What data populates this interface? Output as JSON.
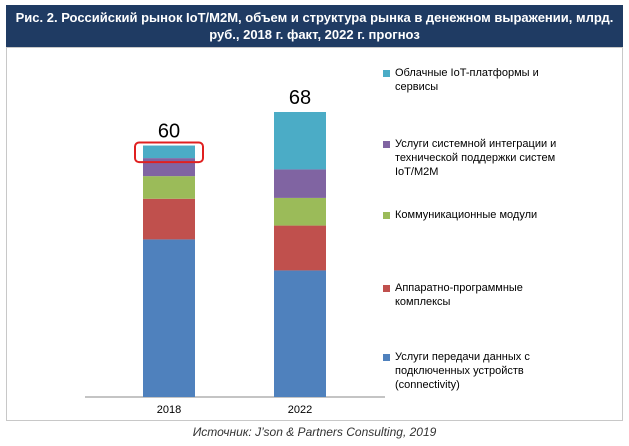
{
  "chart_data": {
    "type": "stacked_bar",
    "title": "Рис. 2. Российский рынок IoT/M2M, объем и структура рынка в денежном выражении, млрд. руб., 2018 г. факт, 2022 г. прогноз",
    "categories": [
      "2018",
      "2022"
    ],
    "totals": [
      60,
      68
    ],
    "series": [
      {
        "name": "Услуги передачи данных с подключенных устройств (connectivity)",
        "color": "#4f81bd",
        "values": [
          37.6,
          30.2
        ]
      },
      {
        "name": "Аппаратно-программные комплексы",
        "color": "#c0504d",
        "values": [
          9.7,
          10.7
        ]
      },
      {
        "name": "Коммуникационные модули",
        "color": "#9bbb59",
        "values": [
          5.4,
          6.6
        ]
      },
      {
        "name": "Услуги системной интеграции и технической поддержки систем IoT/M2M",
        "color": "#8064a2",
        "values": [
          4.3,
          6.8
        ]
      },
      {
        "name": "Облачные IoT-платформы и сервисы",
        "color": "#4bacc6",
        "values": [
          3.0,
          13.7
        ]
      }
    ],
    "source": "Источник: J’son & Partners Consulting, 2019"
  }
}
